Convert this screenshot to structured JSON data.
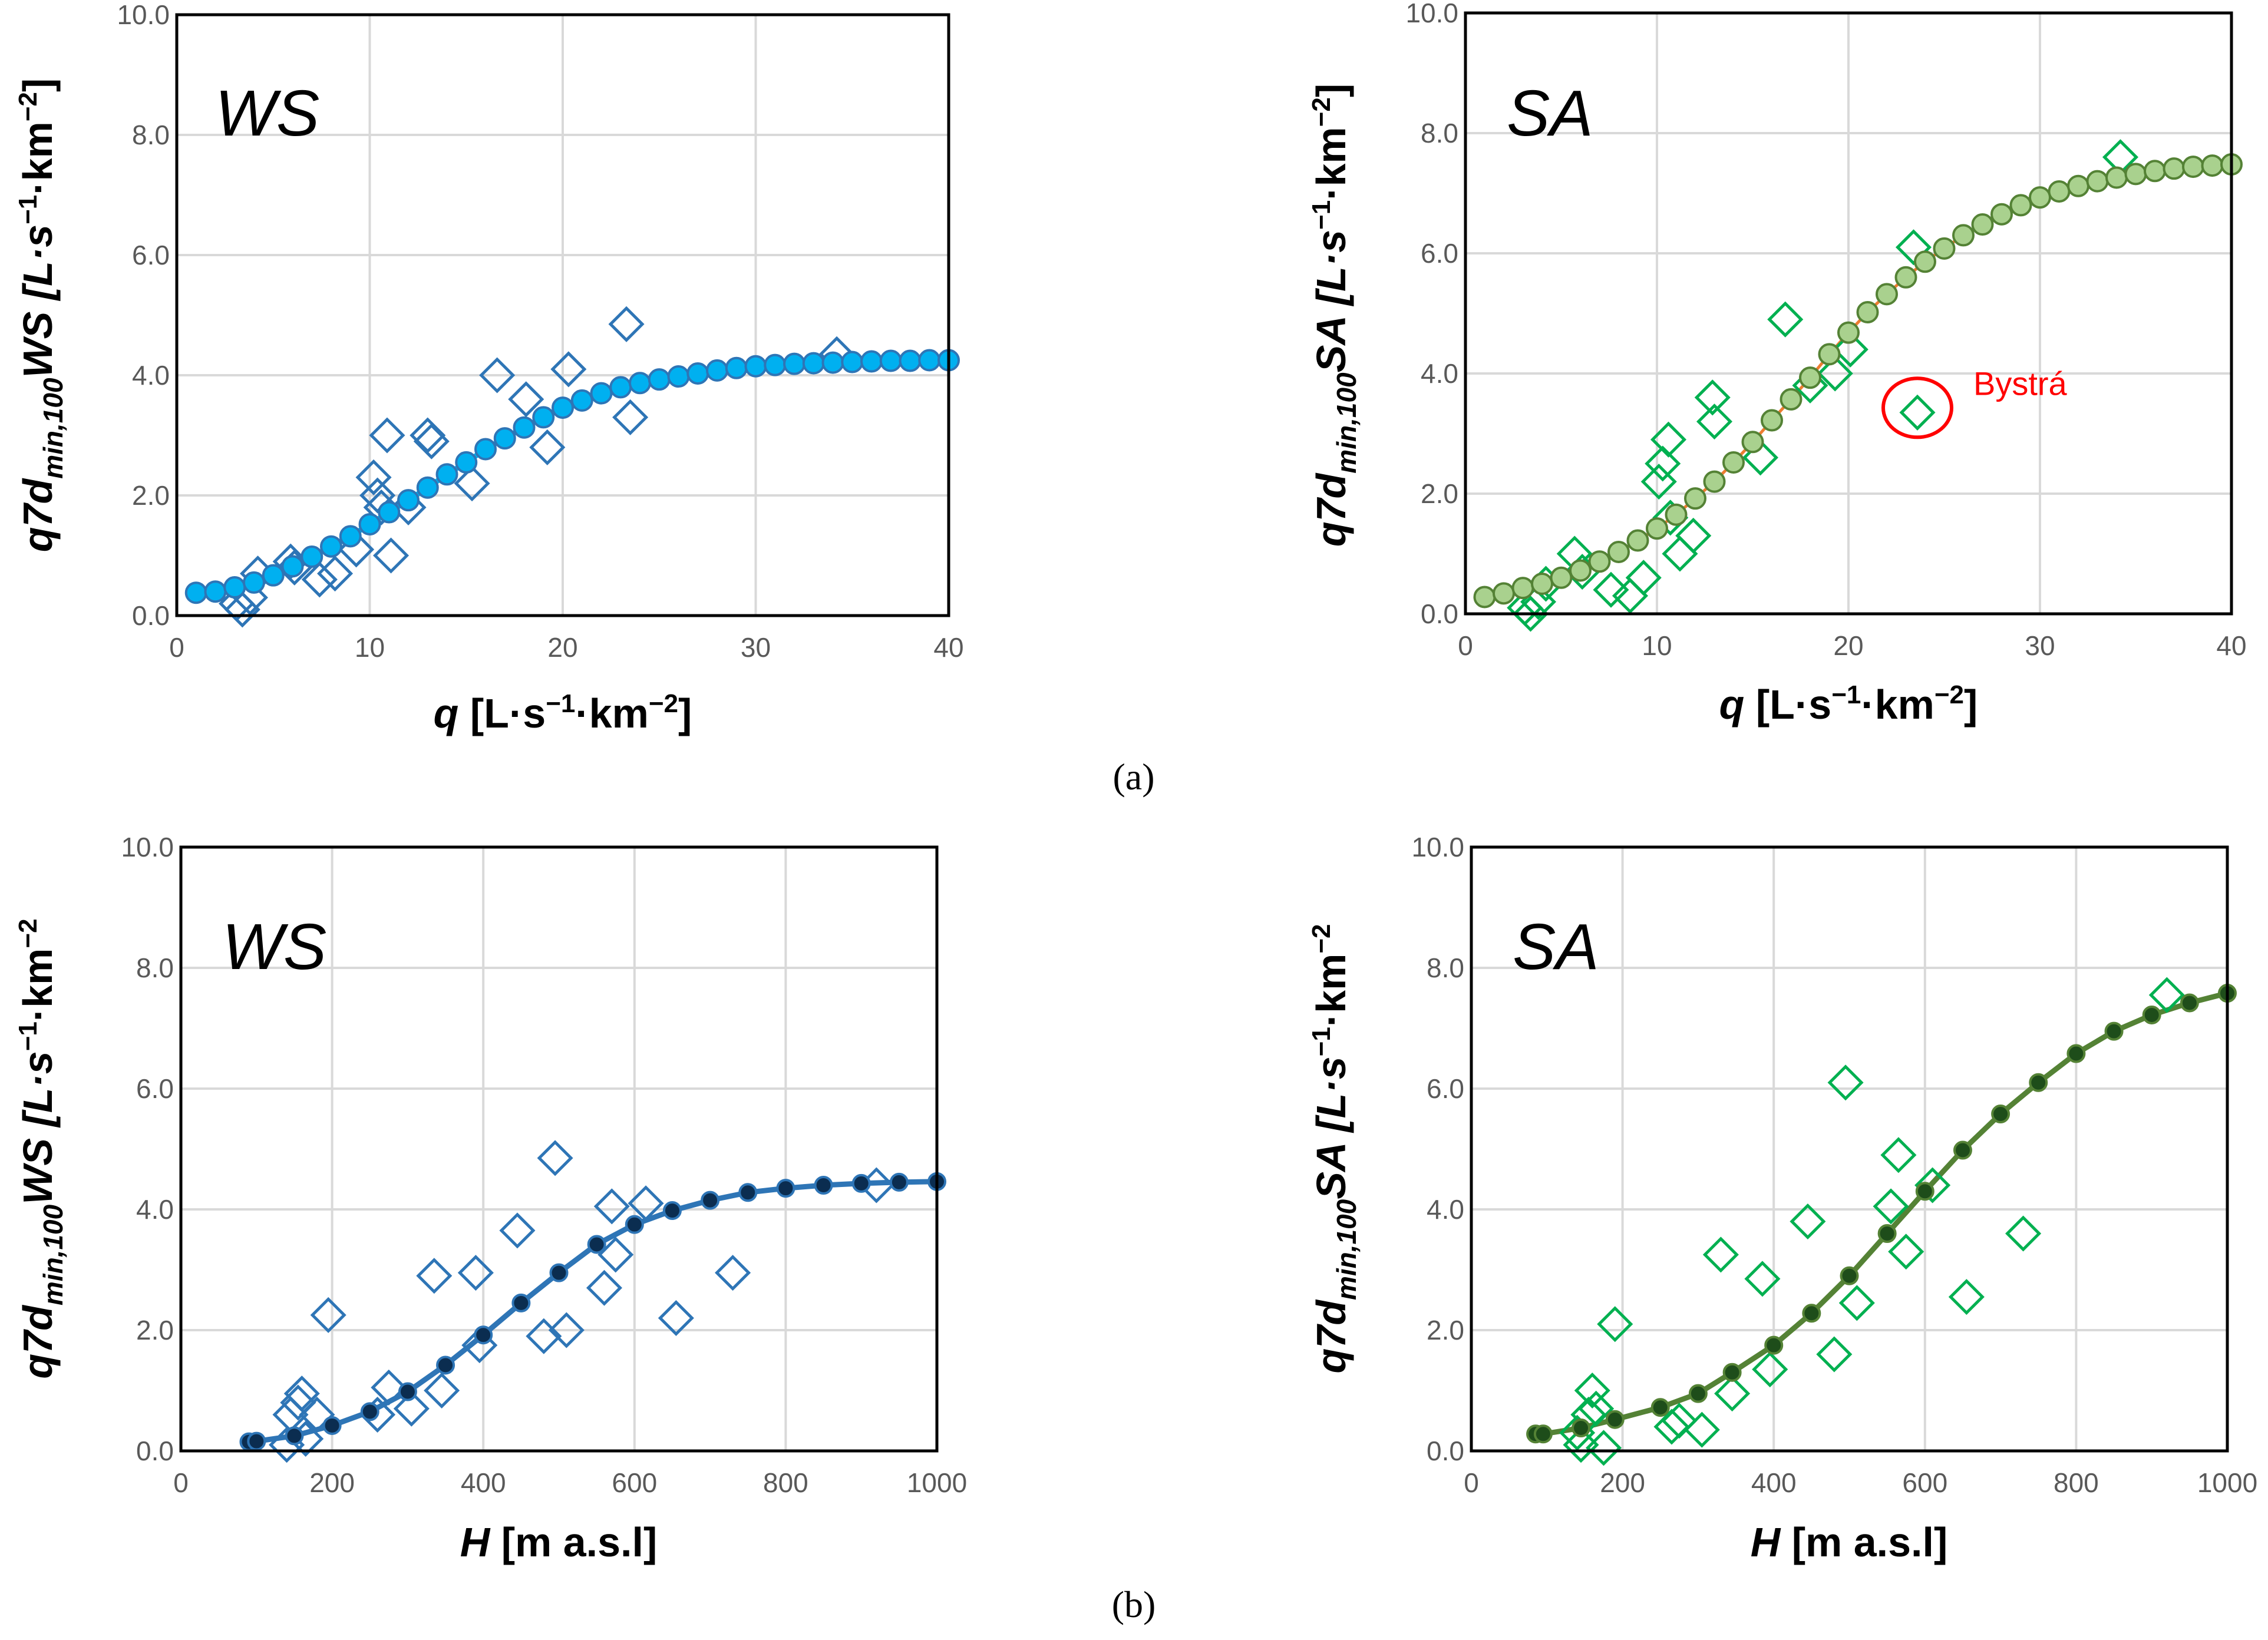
{
  "captions": {
    "a": "(a)",
    "b": "(b)"
  },
  "chart_data": [
    {
      "type": "scatter",
      "panel_label": "WS",
      "xlabel_var": "q",
      "xlabel_rest": " [L·s",
      "xlabel_exp1": "−1",
      "xlabel_mid": "·km",
      "xlabel_exp2": "−2",
      "xlabel_end": "]",
      "ylabel_a": "q7d",
      "ylabel_sub": "min,100",
      "ylabel_b": "WS [L·s",
      "ylabel_exp1": "−1",
      "ylabel_mid": "·km",
      "ylabel_exp2": "−2",
      "ylabel_end": "]",
      "xlim": [
        0,
        40
      ],
      "ylim": [
        0,
        10
      ],
      "xticks": [
        "0",
        "10",
        "20",
        "30",
        "40"
      ],
      "yticks": [
        "0.0",
        "2.0",
        "4.0",
        "6.0",
        "8.0",
        "10.0"
      ],
      "colors": {
        "obs": "#2e75b6",
        "model": "#00b0f0",
        "model_edge": "#2e75b6",
        "line": "#00b0f0"
      },
      "series": [
        {
          "name": "observed",
          "style": "diamond-open",
          "points": [
            [
              3.1,
              0.2
            ],
            [
              3.4,
              0.1
            ],
            [
              3.8,
              0.3
            ],
            [
              4.2,
              0.7
            ],
            [
              5.9,
              0.9
            ],
            [
              6.1,
              0.8
            ],
            [
              7.4,
              0.6
            ],
            [
              8.2,
              0.7
            ],
            [
              9.3,
              1.1
            ],
            [
              10.2,
              2.3
            ],
            [
              10.4,
              2.0
            ],
            [
              10.6,
              1.8
            ],
            [
              10.9,
              3.0
            ],
            [
              11.1,
              1.0
            ],
            [
              12.0,
              1.8
            ],
            [
              13.0,
              3.0
            ],
            [
              13.2,
              2.9
            ],
            [
              15.3,
              2.2
            ],
            [
              16.6,
              4.0
            ],
            [
              18.1,
              3.6
            ],
            [
              19.2,
              2.8
            ],
            [
              20.3,
              4.1
            ],
            [
              23.3,
              4.85
            ],
            [
              23.5,
              3.3
            ],
            [
              34.2,
              4.35
            ]
          ]
        },
        {
          "name": "model",
          "style": "circle-filled",
          "points": [
            [
              1,
              0.38
            ],
            [
              2,
              0.4
            ],
            [
              3,
              0.47
            ],
            [
              4,
              0.55
            ],
            [
              5,
              0.67
            ],
            [
              6,
              0.82
            ],
            [
              7,
              0.98
            ],
            [
              8,
              1.15
            ],
            [
              9,
              1.32
            ],
            [
              10,
              1.52
            ],
            [
              11,
              1.72
            ],
            [
              12,
              1.92
            ],
            [
              13,
              2.13
            ],
            [
              14,
              2.35
            ],
            [
              15,
              2.55
            ],
            [
              16,
              2.77
            ],
            [
              17,
              2.95
            ],
            [
              18,
              3.13
            ],
            [
              19,
              3.3
            ],
            [
              20,
              3.46
            ],
            [
              21,
              3.58
            ],
            [
              22,
              3.7
            ],
            [
              23,
              3.8
            ],
            [
              24,
              3.87
            ],
            [
              25,
              3.93
            ],
            [
              26,
              3.98
            ],
            [
              27,
              4.03
            ],
            [
              28,
              4.08
            ],
            [
              29,
              4.12
            ],
            [
              30,
              4.15
            ],
            [
              31,
              4.17
            ],
            [
              32,
              4.19
            ],
            [
              33,
              4.2
            ],
            [
              34,
              4.21
            ],
            [
              35,
              4.22
            ],
            [
              36,
              4.23
            ],
            [
              37,
              4.24
            ],
            [
              38,
              4.24
            ],
            [
              39,
              4.25
            ],
            [
              40,
              4.25
            ]
          ]
        }
      ]
    },
    {
      "type": "scatter",
      "panel_label": "SA",
      "xlabel_var": "q",
      "xlabel_rest": " [L·s",
      "xlabel_exp1": "−1",
      "xlabel_mid": "·km",
      "xlabel_exp2": "−2",
      "xlabel_end": "]",
      "ylabel_a": "q7d",
      "ylabel_sub": "min,100",
      "ylabel_b": "SA [L·s",
      "ylabel_exp1": "−1",
      "ylabel_mid": "·km",
      "ylabel_exp2": "−2",
      "ylabel_end": "]",
      "xlim": [
        0,
        40
      ],
      "ylim": [
        0,
        10
      ],
      "xticks": [
        "0",
        "10",
        "20",
        "30",
        "40"
      ],
      "yticks": [
        "0.0",
        "2.0",
        "4.0",
        "6.0",
        "8.0",
        "10.0"
      ],
      "annotation": {
        "text": "Bystrá",
        "x": 23.6,
        "y": 3.35
      },
      "colors": {
        "obs": "#00b050",
        "model": "#a9d18e",
        "model_edge": "#548235",
        "line": "#ed7d31",
        "annot": "#ff0000"
      },
      "series": [
        {
          "name": "observed",
          "style": "diamond-open",
          "points": [
            [
              3.1,
              0.1
            ],
            [
              3.4,
              0.0
            ],
            [
              3.8,
              0.2
            ],
            [
              4.2,
              0.5
            ],
            [
              5.7,
              1.0
            ],
            [
              6.1,
              0.7
            ],
            [
              7.6,
              0.4
            ],
            [
              8.6,
              0.3
            ],
            [
              9.3,
              0.6
            ],
            [
              10.1,
              2.2
            ],
            [
              10.3,
              2.5
            ],
            [
              10.6,
              2.9
            ],
            [
              10.7,
              1.6
            ],
            [
              11.2,
              1.0
            ],
            [
              11.9,
              1.3
            ],
            [
              12.9,
              3.6
            ],
            [
              13.0,
              3.2
            ],
            [
              15.4,
              2.6
            ],
            [
              16.7,
              4.9
            ],
            [
              18.0,
              3.8
            ],
            [
              19.3,
              4.0
            ],
            [
              20.1,
              4.4
            ],
            [
              23.4,
              6.1
            ],
            [
              23.6,
              3.35
            ],
            [
              34.2,
              7.6
            ]
          ]
        },
        {
          "name": "model",
          "style": "circle-filled",
          "points": [
            [
              1,
              0.28
            ],
            [
              2,
              0.34
            ],
            [
              3,
              0.43
            ],
            [
              4,
              0.5
            ],
            [
              5,
              0.6
            ],
            [
              6,
              0.72
            ],
            [
              7,
              0.87
            ],
            [
              8,
              1.03
            ],
            [
              9,
              1.22
            ],
            [
              10,
              1.42
            ],
            [
              11,
              1.65
            ],
            [
              12,
              1.92
            ],
            [
              13,
              2.2
            ],
            [
              14,
              2.52
            ],
            [
              15,
              2.86
            ],
            [
              16,
              3.22
            ],
            [
              17,
              3.57
            ],
            [
              18,
              3.93
            ],
            [
              19,
              4.32
            ],
            [
              20,
              4.68
            ],
            [
              21,
              5.02
            ],
            [
              22,
              5.32
            ],
            [
              23,
              5.6
            ],
            [
              24,
              5.86
            ],
            [
              25,
              6.08
            ],
            [
              26,
              6.3
            ],
            [
              27,
              6.48
            ],
            [
              28,
              6.65
            ],
            [
              29,
              6.8
            ],
            [
              30,
              6.93
            ],
            [
              31,
              7.03
            ],
            [
              32,
              7.12
            ],
            [
              33,
              7.2
            ],
            [
              34,
              7.26
            ],
            [
              35,
              7.32
            ],
            [
              36,
              7.37
            ],
            [
              37,
              7.41
            ],
            [
              38,
              7.44
            ],
            [
              39,
              7.46
            ],
            [
              40,
              7.48
            ]
          ]
        }
      ]
    },
    {
      "type": "scatter",
      "panel_label": "WS",
      "xlabel_var": "H",
      "xlabel_rest": " [m a.s.l]",
      "ylabel_a": "q7d",
      "ylabel_sub": "min,100",
      "ylabel_b": "WS [L·s",
      "ylabel_exp1": "−1",
      "ylabel_mid": "·km",
      "ylabel_exp2": "−2",
      "ylabel_end": "",
      "xlim": [
        0,
        1000
      ],
      "ylim": [
        0,
        10
      ],
      "xticks": [
        "0",
        "200",
        "400",
        "600",
        "800",
        "1000"
      ],
      "yticks": [
        "0.0",
        "2.0",
        "4.0",
        "6.0",
        "8.0",
        "10.0"
      ],
      "colors": {
        "obs": "#2e75b6",
        "model": "#0b2d50",
        "model_edge": "#2e75b6",
        "line": "#2e75b6"
      },
      "series": [
        {
          "name": "observed",
          "style": "diamond-open",
          "points": [
            [
              140,
              0.1
            ],
            [
              145,
              0.6
            ],
            [
              155,
              0.8
            ],
            [
              160,
              0.95
            ],
            [
              165,
              0.2
            ],
            [
              180,
              0.6
            ],
            [
              195,
              2.25
            ],
            [
              275,
              1.05
            ],
            [
              260,
              0.6
            ],
            [
              305,
              0.7
            ],
            [
              335,
              2.9
            ],
            [
              345,
              1.0
            ],
            [
              390,
              2.95
            ],
            [
              395,
              1.75
            ],
            [
              445,
              3.65
            ],
            [
              480,
              1.9
            ],
            [
              495,
              4.85
            ],
            [
              510,
              2.0
            ],
            [
              560,
              2.7
            ],
            [
              570,
              4.05
            ],
            [
              575,
              3.25
            ],
            [
              615,
              4.1
            ],
            [
              655,
              2.2
            ],
            [
              730,
              2.95
            ],
            [
              920,
              4.4
            ]
          ]
        },
        {
          "name": "model",
          "style": "circle-filled",
          "points": [
            [
              90,
              0.15
            ],
            [
              100,
              0.16
            ],
            [
              150,
              0.25
            ],
            [
              200,
              0.42
            ],
            [
              250,
              0.65
            ],
            [
              300,
              0.98
            ],
            [
              350,
              1.42
            ],
            [
              400,
              1.92
            ],
            [
              450,
              2.45
            ],
            [
              500,
              2.95
            ],
            [
              550,
              3.42
            ],
            [
              600,
              3.75
            ],
            [
              650,
              3.98
            ],
            [
              700,
              4.15
            ],
            [
              750,
              4.28
            ],
            [
              800,
              4.35
            ],
            [
              850,
              4.4
            ],
            [
              900,
              4.43
            ],
            [
              950,
              4.45
            ],
            [
              1000,
              4.46
            ]
          ]
        }
      ]
    },
    {
      "type": "scatter",
      "panel_label": "SA",
      "xlabel_var": "H",
      "xlabel_rest": " [m a.s.l]",
      "ylabel_a": "q7d",
      "ylabel_sub": "min,100",
      "ylabel_b": "SA [L·s",
      "ylabel_exp1": "−1",
      "ylabel_mid": "·km",
      "ylabel_exp2": "−2",
      "ylabel_end": "",
      "xlim": [
        0,
        1000
      ],
      "ylim": [
        0,
        10
      ],
      "xticks": [
        "0",
        "200",
        "400",
        "600",
        "800",
        "1000"
      ],
      "yticks": [
        "0.0",
        "2.0",
        "4.0",
        "6.0",
        "8.0",
        "10.0"
      ],
      "colors": {
        "obs": "#00b050",
        "model": "#1e4d1a",
        "model_edge": "#548235",
        "line": "#548235"
      },
      "series": [
        {
          "name": "observed",
          "style": "diamond-open",
          "points": [
            [
              140,
              0.3
            ],
            [
              145,
              0.1
            ],
            [
              155,
              0.6
            ],
            [
              160,
              1.0
            ],
            [
              165,
              0.7
            ],
            [
              175,
              0.05
            ],
            [
              190,
              2.1
            ],
            [
              265,
              0.4
            ],
            [
              275,
              0.5
            ],
            [
              305,
              0.35
            ],
            [
              330,
              3.25
            ],
            [
              345,
              0.95
            ],
            [
              385,
              2.85
            ],
            [
              395,
              1.35
            ],
            [
              445,
              3.8
            ],
            [
              480,
              1.6
            ],
            [
              495,
              6.1
            ],
            [
              510,
              2.45
            ],
            [
              555,
              4.05
            ],
            [
              565,
              4.9
            ],
            [
              575,
              3.3
            ],
            [
              610,
              4.4
            ],
            [
              655,
              2.55
            ],
            [
              730,
              3.6
            ],
            [
              920,
              7.55
            ]
          ]
        },
        {
          "name": "model",
          "style": "circle-filled",
          "points": [
            [
              85,
              0.28
            ],
            [
              95,
              0.28
            ],
            [
              145,
              0.38
            ],
            [
              190,
              0.52
            ],
            [
              250,
              0.72
            ],
            [
              300,
              0.95
            ],
            [
              345,
              1.3
            ],
            [
              400,
              1.75
            ],
            [
              450,
              2.28
            ],
            [
              500,
              2.9
            ],
            [
              550,
              3.6
            ],
            [
              600,
              4.3
            ],
            [
              650,
              4.98
            ],
            [
              700,
              5.58
            ],
            [
              750,
              6.1
            ],
            [
              800,
              6.58
            ],
            [
              850,
              6.95
            ],
            [
              900,
              7.22
            ],
            [
              950,
              7.42
            ],
            [
              1000,
              7.58
            ]
          ]
        }
      ]
    }
  ]
}
